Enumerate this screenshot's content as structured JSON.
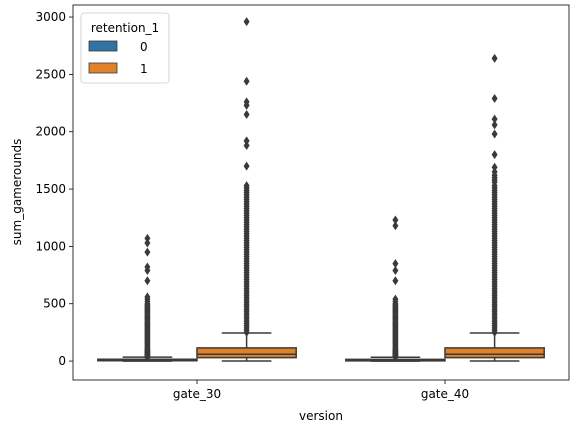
{
  "chart_data": {
    "type": "boxplot",
    "xlabel": "version",
    "ylabel": "sum_gamerounds",
    "categories": [
      "gate_30",
      "gate_40"
    ],
    "ylim": [
      -165,
      3105
    ],
    "yticks": [
      0,
      500,
      1000,
      1500,
      2000,
      2500,
      3000
    ],
    "legend": {
      "title": "retention_1",
      "placement": "top-left",
      "entries": [
        {
          "label": "0",
          "color": "#3274a1"
        },
        {
          "label": "1",
          "color": "#e1812c"
        }
      ]
    },
    "series": [
      {
        "name": "0",
        "color": "#3274a1",
        "boxes": [
          {
            "category": "gate_30",
            "whisker_low": 0,
            "q1": 3,
            "median": 7,
            "q3": 16,
            "whisker_high": 34,
            "outliers": [
              35,
              40,
              45,
              50,
              55,
              60,
              65,
              70,
              75,
              80,
              85,
              90,
              95,
              100,
              110,
              120,
              130,
              140,
              150,
              160,
              170,
              180,
              190,
              200,
              210,
              220,
              230,
              240,
              250,
              260,
              270,
              280,
              290,
              300,
              310,
              320,
              330,
              340,
              350,
              360,
              370,
              380,
              390,
              400,
              410,
              420,
              430,
              440,
              450,
              460,
              470,
              480,
              490,
              500,
              520,
              540,
              560,
              700,
              790,
              820,
              950,
              1030,
              1070
            ]
          },
          {
            "category": "gate_40",
            "whisker_low": 0,
            "q1": 3,
            "median": 7,
            "q3": 15,
            "whisker_high": 33,
            "outliers": [
              35,
              40,
              45,
              50,
              55,
              60,
              65,
              70,
              75,
              80,
              85,
              90,
              95,
              100,
              110,
              120,
              130,
              140,
              150,
              160,
              170,
              180,
              190,
              200,
              210,
              220,
              230,
              240,
              250,
              260,
              270,
              280,
              290,
              300,
              310,
              320,
              330,
              340,
              350,
              360,
              370,
              380,
              390,
              400,
              410,
              420,
              430,
              440,
              450,
              460,
              470,
              480,
              490,
              500,
              520,
              540,
              700,
              790,
              850,
              1180,
              1230
            ]
          }
        ]
      },
      {
        "name": "1",
        "color": "#e1812c",
        "boxes": [
          {
            "category": "gate_30",
            "whisker_low": 1,
            "q1": 30,
            "median": 60,
            "q3": 115,
            "whisker_high": 245,
            "outliers": [
              250,
              270,
              290,
              310,
              330,
              350,
              370,
              390,
              410,
              430,
              450,
              470,
              490,
              510,
              530,
              550,
              570,
              590,
              610,
              630,
              650,
              670,
              690,
              710,
              730,
              750,
              770,
              790,
              810,
              830,
              850,
              870,
              890,
              910,
              930,
              950,
              970,
              990,
              1010,
              1030,
              1050,
              1070,
              1090,
              1110,
              1130,
              1150,
              1170,
              1190,
              1210,
              1230,
              1250,
              1270,
              1290,
              1310,
              1330,
              1350,
              1370,
              1390,
              1410,
              1430,
              1450,
              1470,
              1490,
              1510,
              1530,
              1700,
              1880,
              1920,
              2150,
              2230,
              2260,
              2440,
              2960
            ]
          },
          {
            "category": "gate_40",
            "whisker_low": 1,
            "q1": 30,
            "median": 60,
            "q3": 115,
            "whisker_high": 245,
            "outliers": [
              250,
              270,
              290,
              310,
              330,
              350,
              370,
              390,
              410,
              430,
              450,
              470,
              490,
              510,
              530,
              550,
              570,
              590,
              610,
              630,
              650,
              670,
              690,
              710,
              730,
              750,
              770,
              790,
              810,
              830,
              850,
              870,
              890,
              910,
              930,
              950,
              970,
              990,
              1010,
              1030,
              1050,
              1070,
              1090,
              1110,
              1130,
              1150,
              1170,
              1190,
              1210,
              1230,
              1250,
              1270,
              1290,
              1310,
              1330,
              1350,
              1370,
              1390,
              1410,
              1430,
              1450,
              1470,
              1490,
              1510,
              1530,
              1560,
              1580,
              1600,
              1620,
              1650,
              1690,
              1800,
              1980,
              2060,
              2110,
              2290,
              2640
            ]
          }
        ]
      }
    ]
  }
}
